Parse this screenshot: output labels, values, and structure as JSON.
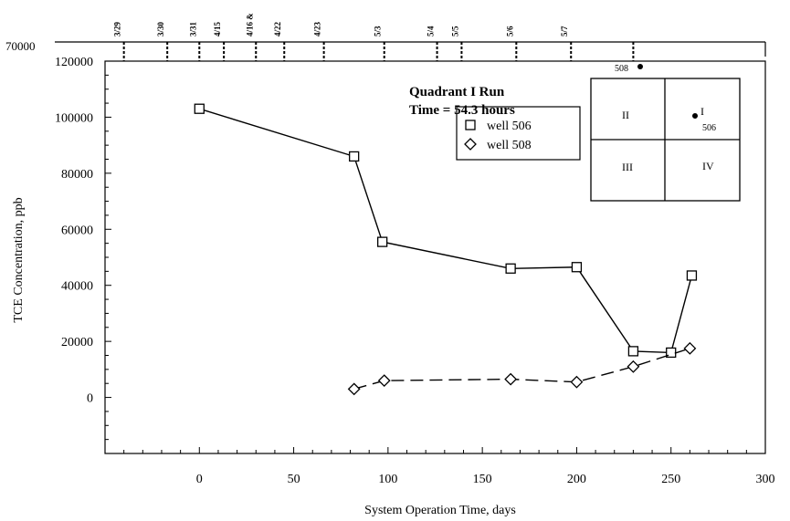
{
  "chart_data": {
    "type": "line",
    "title": "Quadrant I Run",
    "subtitle": "Time = 54.3 hours",
    "xlabel": "System Operation Time, days",
    "ylabel": "TCE Concentration, ppb",
    "xlim": [
      -50,
      300
    ],
    "ylim": [
      -20000,
      120000
    ],
    "x_ticks": [
      "0",
      "50",
      "100",
      "150",
      "200",
      "250",
      "300"
    ],
    "y_ticks": [
      "0",
      "20000",
      "40000",
      "60000",
      "80000",
      "100000",
      "120000"
    ],
    "top_axis_left_label": "70000",
    "top_axis_dates": [
      {
        "label": "3/29",
        "day": -40
      },
      {
        "label": "3/30",
        "day": -17
      },
      {
        "label": "3/31",
        "day": 0
      },
      {
        "label": "4/15",
        "day": 13
      },
      {
        "label": "4/16 &",
        "day": 30
      },
      {
        "label": "4/22",
        "day": 45
      },
      {
        "label": "4/23",
        "day": 66
      },
      {
        "label": "5/3",
        "day": 98
      },
      {
        "label": "5/4",
        "day": 126
      },
      {
        "label": "5/5",
        "day": 139
      },
      {
        "label": "5/6",
        "day": 168
      },
      {
        "label": "5/7",
        "day": 197
      },
      {
        "label": "",
        "day": 230
      }
    ],
    "series": [
      {
        "name": "well 506",
        "marker": "square",
        "line": "solid",
        "x": [
          0,
          82,
          97,
          165,
          200,
          230,
          250,
          261
        ],
        "y": [
          103000,
          86000,
          55500,
          46000,
          46500,
          16500,
          16000,
          43500
        ]
      },
      {
        "name": "well 508",
        "marker": "diamond",
        "line": "dashed",
        "x": [
          82,
          98,
          165,
          200,
          230,
          260
        ],
        "y": [
          3000,
          6000,
          6500,
          5500,
          11000,
          17500
        ]
      }
    ],
    "legend_position": "upper-right",
    "grid": false,
    "inset": {
      "quadrants": [
        "I",
        "II",
        "III",
        "IV"
      ],
      "point_labels": [
        "508",
        "506"
      ]
    }
  }
}
